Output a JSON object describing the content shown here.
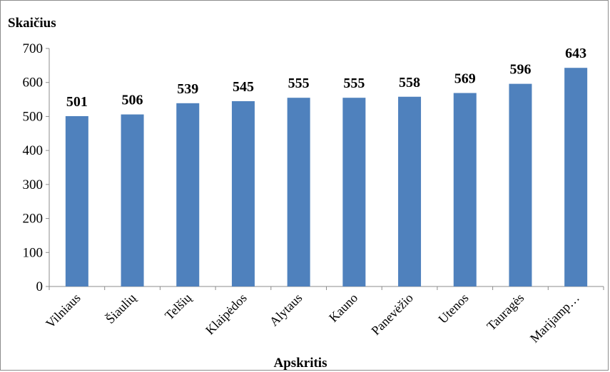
{
  "chart_data": {
    "type": "bar",
    "title": "",
    "ylabel": "Skaičius",
    "xlabel": "Apskritis",
    "categories": [
      "Vilniaus",
      "Šiaulių",
      "Telšių",
      "Klaipėdos",
      "Alytaus",
      "Kauno",
      "Panevėžio",
      "Utenos",
      "Tauragės",
      "Marijamp…"
    ],
    "values": [
      501,
      506,
      539,
      545,
      555,
      555,
      558,
      569,
      596,
      643
    ],
    "ylim": [
      0,
      700
    ],
    "yticks": [
      0,
      100,
      200,
      300,
      400,
      500,
      600,
      700
    ],
    "grid": false,
    "legend": "none",
    "data_labels": true,
    "bar_color": "#4f81bd"
  }
}
